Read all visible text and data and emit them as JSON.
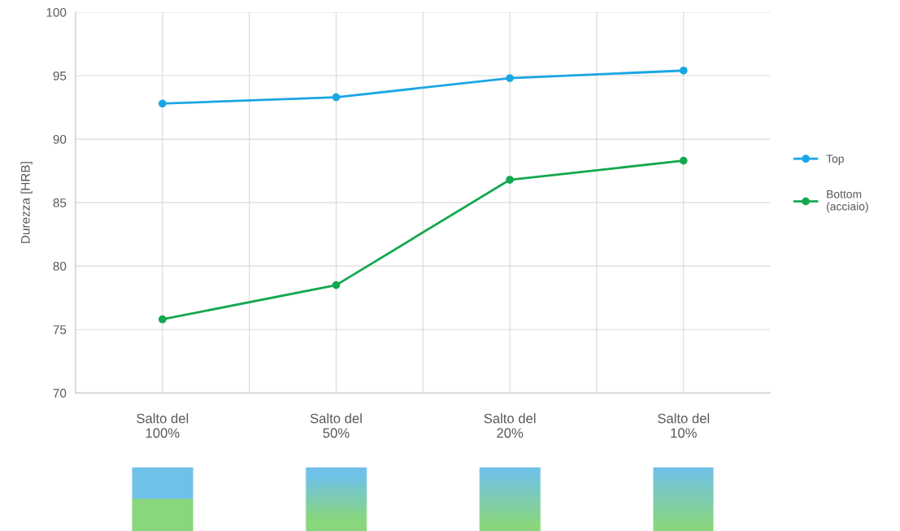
{
  "chart_data": {
    "type": "line",
    "ylabel": "Durezza [HRB]",
    "categories": [
      "Salto del\n100%",
      "Salto del\n50%",
      "Salto del\n20%",
      "Salto del\n10%"
    ],
    "series": [
      {
        "name": "Top",
        "color": "#1aa6e4",
        "values": [
          92.8,
          93.3,
          94.8,
          95.4
        ]
      },
      {
        "name": "Bottom\n(acciaio)",
        "color": "#13a84e",
        "values": [
          75.8,
          78.5,
          86.8,
          88.3
        ]
      }
    ],
    "ylim": [
      70,
      100
    ],
    "yticks": [
      70,
      75,
      80,
      85,
      90,
      95,
      100
    ],
    "grid": true,
    "legend": "right",
    "marker": "circle",
    "line_style": "solid"
  }
}
